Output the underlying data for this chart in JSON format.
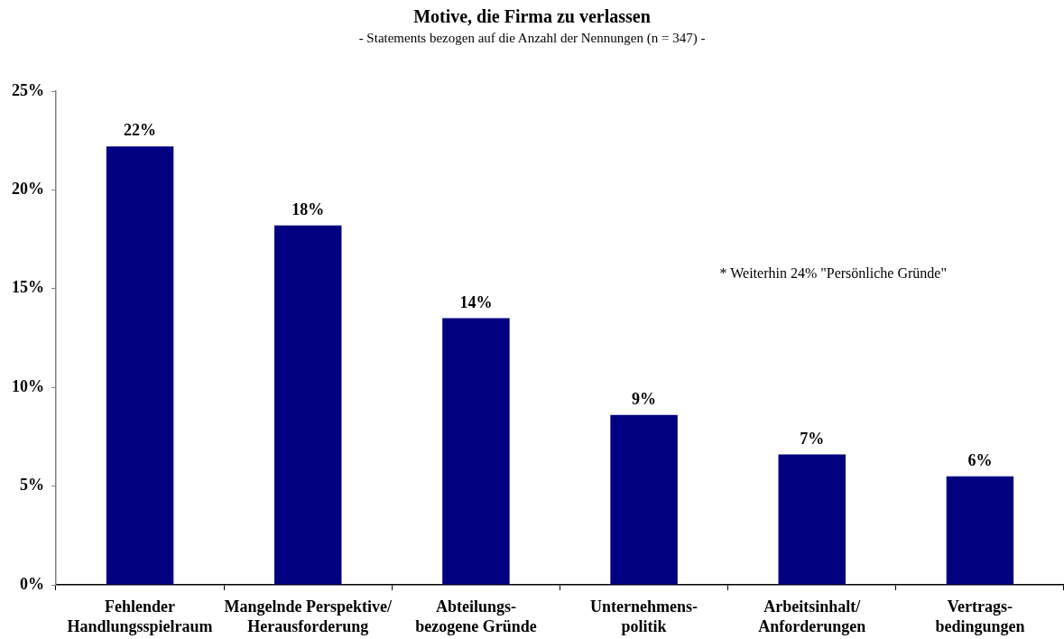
{
  "chart_data": {
    "type": "bar",
    "title": "Motive, die Firma zu verlassen",
    "subtitle": "- Statements bezogen auf die Anzahl der Nennungen (n = 347) -",
    "categories": [
      "Fehlender\nHandlungsspielraum",
      "Mangelnde Perspektive/\nHerausforderung",
      "Abteilungs-\nbezogene Gründe",
      "Unternehmens-\npolitik",
      "Arbeitsinhalt/\nAnforderungen",
      "Vertrags-\nbedingungen"
    ],
    "values": [
      22.2,
      18.2,
      13.5,
      8.6,
      6.6,
      5.5
    ],
    "value_labels": [
      "22%",
      "18%",
      "14%",
      "9%",
      "7%",
      "6%"
    ],
    "color": "#000080",
    "ylim": [
      0,
      25
    ],
    "yticks": [
      {
        "value": 0,
        "label": "0%"
      },
      {
        "value": 5,
        "label": "5%"
      },
      {
        "value": 10,
        "label": "10%"
      },
      {
        "value": 15,
        "label": "15%"
      },
      {
        "value": 20,
        "label": "20%"
      },
      {
        "value": 25,
        "label": "25%"
      }
    ],
    "grid": false,
    "legend": false,
    "annotations": [
      "* Weiterhin 24% \"Persönliche Gründe\""
    ]
  }
}
